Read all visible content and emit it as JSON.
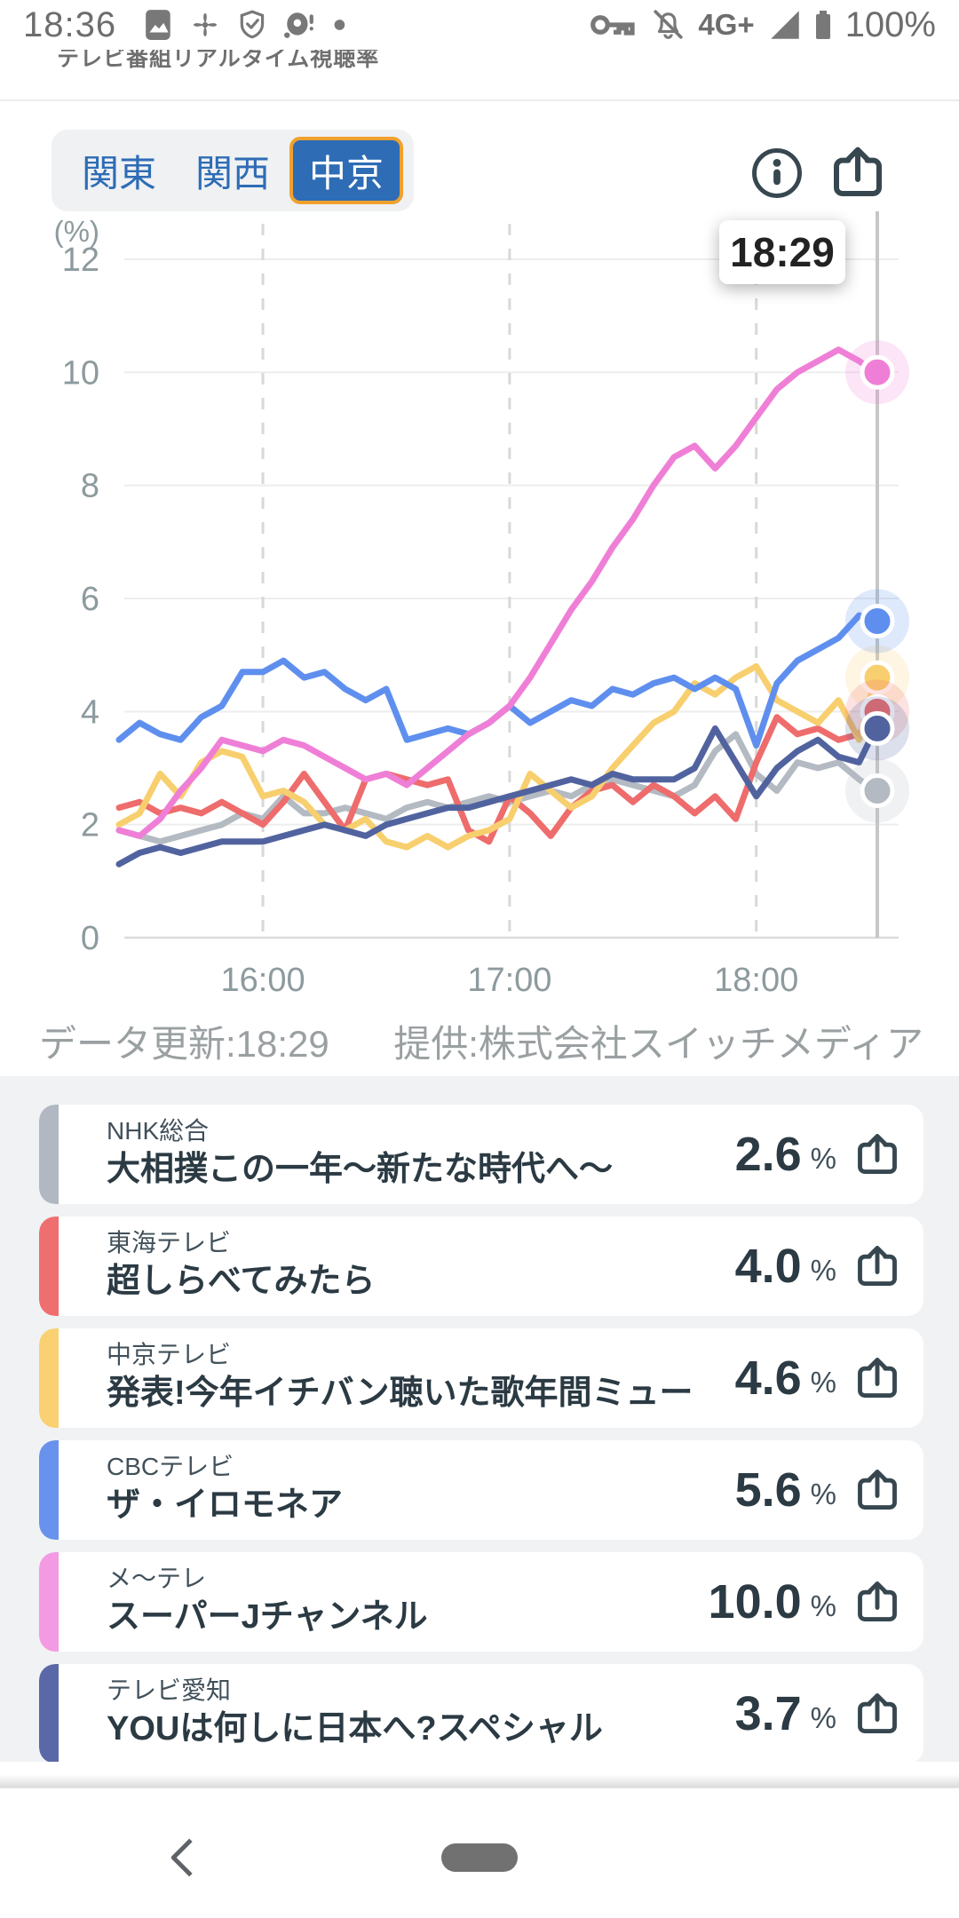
{
  "status_bar": {
    "time": "18:36",
    "network": "4G+",
    "battery": "100%"
  },
  "header": {
    "clipped_title": "テレビ番組リアルタイム視聴率"
  },
  "tabs": [
    {
      "id": "kanto",
      "label": "関東",
      "active": false
    },
    {
      "id": "kansai",
      "label": "関西",
      "active": false
    },
    {
      "id": "chukyo",
      "label": "中京",
      "active": true
    }
  ],
  "chart": {
    "tooltip": "18:29",
    "unit_label": "(%)",
    "updated_text": "データ更新:18:29",
    "provider_text": "提供:株式会社スイッチメディア"
  },
  "chart_data": {
    "type": "line",
    "title": "テレビ番組リアルタイム視聴率(中京)",
    "ylabel": "(%)",
    "ylim": [
      0,
      12
    ],
    "y_ticks": [
      12,
      10,
      8,
      6,
      4,
      2,
      0
    ],
    "x_axis": {
      "start_time": "15:25",
      "end_time": "18:29",
      "interval_minutes": 5,
      "ticks": [
        {
          "label": "16:00",
          "minute": 35
        },
        {
          "label": "17:00",
          "minute": 95
        },
        {
          "label": "18:00",
          "minute": 155
        }
      ]
    },
    "cursor_minute": 184,
    "cursor_time": "18:29",
    "x_minutes": [
      0,
      5,
      10,
      15,
      20,
      25,
      30,
      35,
      40,
      45,
      50,
      55,
      60,
      65,
      70,
      75,
      80,
      85,
      90,
      95,
      100,
      105,
      110,
      115,
      120,
      125,
      130,
      135,
      140,
      145,
      150,
      155,
      160,
      165,
      170,
      175,
      180,
      184
    ],
    "line_draw_order": [
      0,
      1,
      2,
      3,
      5,
      4
    ],
    "marker_draw_order": [
      2,
      1,
      5,
      0,
      3,
      4
    ],
    "series": [
      {
        "name": "NHK総合",
        "color": "#b3bac2",
        "final": 2.6,
        "values": [
          1.9,
          1.8,
          1.7,
          1.8,
          1.9,
          2.0,
          2.2,
          2.1,
          2.5,
          2.2,
          2.2,
          2.3,
          2.2,
          2.1,
          2.3,
          2.4,
          2.3,
          2.4,
          2.5,
          2.4,
          2.5,
          2.6,
          2.5,
          2.7,
          2.8,
          2.7,
          2.6,
          2.5,
          2.7,
          3.3,
          3.6,
          2.9,
          2.6,
          3.1,
          3.0,
          3.1,
          2.8,
          2.6
        ]
      },
      {
        "name": "東海テレビ",
        "color": "#ee6c6c",
        "final": 4.0,
        "values": [
          2.3,
          2.4,
          2.2,
          2.3,
          2.2,
          2.4,
          2.2,
          2.0,
          2.4,
          2.9,
          2.4,
          1.9,
          2.8,
          2.9,
          2.8,
          2.7,
          2.8,
          1.9,
          1.7,
          2.5,
          2.2,
          1.8,
          2.3,
          2.6,
          2.7,
          2.4,
          2.7,
          2.5,
          2.2,
          2.5,
          2.1,
          3.1,
          3.9,
          3.6,
          3.7,
          3.5,
          3.6,
          4.0
        ]
      },
      {
        "name": "中京テレビ",
        "color": "#f8cf6e",
        "final": 4.6,
        "values": [
          2.0,
          2.2,
          2.9,
          2.5,
          3.1,
          3.3,
          3.2,
          2.5,
          2.6,
          2.4,
          2.0,
          1.9,
          2.1,
          1.7,
          1.6,
          1.8,
          1.6,
          1.8,
          1.9,
          2.1,
          2.9,
          2.6,
          2.3,
          2.5,
          3.0,
          3.4,
          3.8,
          4.0,
          4.5,
          4.3,
          4.6,
          4.8,
          4.2,
          4.0,
          3.8,
          4.2,
          3.5,
          4.6
        ]
      },
      {
        "name": "CBCテレビ",
        "color": "#5f8fee",
        "final": 5.6,
        "values": [
          3.5,
          3.8,
          3.6,
          3.5,
          3.9,
          4.1,
          4.7,
          4.7,
          4.9,
          4.6,
          4.7,
          4.4,
          4.2,
          4.4,
          3.5,
          3.6,
          3.7,
          3.6,
          3.8,
          4.1,
          3.8,
          4.0,
          4.2,
          4.1,
          4.4,
          4.3,
          4.5,
          4.6,
          4.4,
          4.6,
          4.4,
          3.4,
          4.5,
          4.9,
          5.1,
          5.3,
          5.7,
          5.6
        ]
      },
      {
        "name": "メ〜テレ",
        "color": "#ef7fd6",
        "final": 10.0,
        "values": [
          1.9,
          1.8,
          2.1,
          2.6,
          3.0,
          3.5,
          3.4,
          3.3,
          3.5,
          3.4,
          3.2,
          3.0,
          2.8,
          2.9,
          2.7,
          3.0,
          3.3,
          3.6,
          3.8,
          4.1,
          4.6,
          5.2,
          5.8,
          6.3,
          6.9,
          7.4,
          8.0,
          8.5,
          8.7,
          8.3,
          8.7,
          9.2,
          9.7,
          10.0,
          10.2,
          10.4,
          10.2,
          10.0
        ]
      },
      {
        "name": "テレビ愛知",
        "color": "#51639f",
        "final": 3.7,
        "values": [
          1.3,
          1.5,
          1.6,
          1.5,
          1.6,
          1.7,
          1.7,
          1.7,
          1.8,
          1.9,
          2.0,
          1.9,
          1.8,
          2.0,
          2.1,
          2.2,
          2.3,
          2.3,
          2.4,
          2.5,
          2.6,
          2.7,
          2.8,
          2.7,
          2.9,
          2.8,
          2.8,
          2.8,
          3.0,
          3.7,
          3.1,
          2.5,
          3.0,
          3.3,
          3.5,
          3.2,
          3.1,
          3.7
        ]
      }
    ]
  },
  "list": {
    "percent_label": "%",
    "channels": [
      {
        "station": "NHK総合",
        "program": "大相撲この一年〜新たな時代へ〜",
        "rating": "2.6",
        "color": "#b2b8c1"
      },
      {
        "station": "東海テレビ",
        "program": "超しらべてみたら",
        "rating": "4.0",
        "color": "#ef6f70"
      },
      {
        "station": "中京テレビ",
        "program": "発表!今年イチバン聴いた歌年間ミュージ…",
        "rating": "4.6",
        "color": "#f9d173"
      },
      {
        "station": "CBCテレビ",
        "program": "ザ・イロモネア",
        "rating": "5.6",
        "color": "#6892ec"
      },
      {
        "station": "メ〜テレ",
        "program": "スーパーJチャンネル",
        "rating": "10.0",
        "color": "#f49ae2"
      },
      {
        "station": "テレビ愛知",
        "program": "YOUは何しに日本へ?スペシャル",
        "rating": "3.7",
        "color": "#5a68a7"
      }
    ]
  }
}
